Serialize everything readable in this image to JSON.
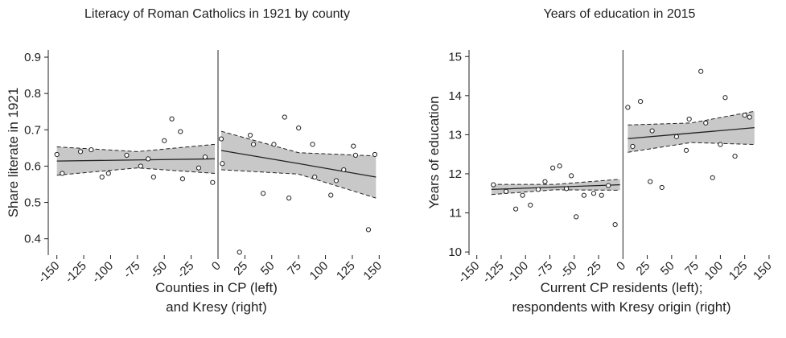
{
  "chart_data": [
    {
      "type": "scatter",
      "title": "Literacy of Roman Catholics in 1921 by county",
      "ylabel": "Share literate in 1921",
      "xlabel": [
        "Counties in CP (left)",
        "and Kresy (right)"
      ],
      "xlim": [
        -158,
        155
      ],
      "ylim": [
        0.355,
        0.92
      ],
      "xticks": [
        -150,
        -125,
        -100,
        -75,
        -50,
        -25,
        0,
        25,
        50,
        75,
        100,
        125,
        150
      ],
      "yticks": [
        0.4,
        0.5,
        0.6,
        0.7,
        0.8,
        0.9
      ],
      "cutoff": 0,
      "points": {
        "x": [
          -150,
          -145,
          -128,
          -118,
          -108,
          -102,
          -85,
          -72,
          -65,
          -60,
          -50,
          -43,
          -35,
          -33,
          -18,
          -12,
          -5,
          3,
          4,
          20,
          30,
          33,
          42,
          52,
          62,
          66,
          75,
          88,
          90,
          105,
          110,
          117,
          126,
          128,
          140,
          146
        ],
        "y": [
          0.632,
          0.58,
          0.64,
          0.645,
          0.57,
          0.58,
          0.63,
          0.6,
          0.62,
          0.57,
          0.67,
          0.73,
          0.695,
          0.565,
          0.595,
          0.625,
          0.555,
          0.675,
          0.607,
          0.363,
          0.685,
          0.66,
          0.525,
          0.66,
          0.735,
          0.512,
          0.705,
          0.66,
          0.57,
          0.52,
          0.56,
          0.59,
          0.655,
          0.63,
          0.425,
          0.632
        ]
      },
      "fits": [
        {
          "x": [
            -150,
            -75,
            -3
          ],
          "y": [
            0.614,
            0.617,
            0.62
          ],
          "lower": [
            0.575,
            0.595,
            0.58
          ],
          "upper": [
            0.653,
            0.64,
            0.66
          ]
        },
        {
          "x": [
            3,
            75,
            147
          ],
          "y": [
            0.643,
            0.607,
            0.57
          ],
          "lower": [
            0.59,
            0.578,
            0.512
          ],
          "upper": [
            0.696,
            0.637,
            0.628
          ]
        }
      ]
    },
    {
      "type": "scatter",
      "title": "Years of education in 2015",
      "ylabel": "Years of education",
      "xlabel": [
        "Current CP residents (left);",
        "respondents with Kresy origin (right)"
      ],
      "xlim": [
        -158,
        155
      ],
      "ylim": [
        9.92,
        15.17
      ],
      "xticks": [
        -150,
        -125,
        -100,
        -75,
        -50,
        -25,
        0,
        25,
        50,
        75,
        100,
        125,
        150
      ],
      "yticks": [
        10,
        11,
        12,
        13,
        14,
        15
      ],
      "cutoff": 0,
      "points": {
        "x": [
          -133,
          -120,
          -110,
          -103,
          -95,
          -87,
          -80,
          -72,
          -65,
          -58,
          -53,
          -48,
          -40,
          -30,
          -22,
          -15,
          -8,
          5,
          10,
          18,
          28,
          30,
          40,
          55,
          65,
          68,
          80,
          85,
          92,
          100,
          105,
          115,
          125,
          130
        ],
        "y": [
          11.72,
          11.55,
          11.1,
          11.45,
          11.2,
          11.6,
          11.8,
          12.15,
          12.2,
          11.62,
          11.95,
          10.9,
          11.45,
          11.5,
          11.45,
          11.7,
          10.7,
          13.7,
          12.7,
          13.85,
          11.8,
          13.1,
          11.65,
          12.95,
          12.6,
          13.4,
          14.62,
          13.3,
          11.9,
          12.75,
          13.95,
          12.45,
          13.5,
          13.45
        ]
      },
      "fits": [
        {
          "x": [
            -135,
            -70,
            -3
          ],
          "y": [
            11.6,
            11.66,
            11.72
          ],
          "lower": [
            11.47,
            11.59,
            11.58
          ],
          "upper": [
            11.73,
            11.73,
            11.86
          ]
        },
        {
          "x": [
            5,
            70,
            135
          ],
          "y": [
            12.9,
            13.04,
            13.18
          ],
          "lower": [
            12.55,
            12.8,
            12.75
          ],
          "upper": [
            13.25,
            13.3,
            13.6
          ]
        }
      ]
    }
  ]
}
